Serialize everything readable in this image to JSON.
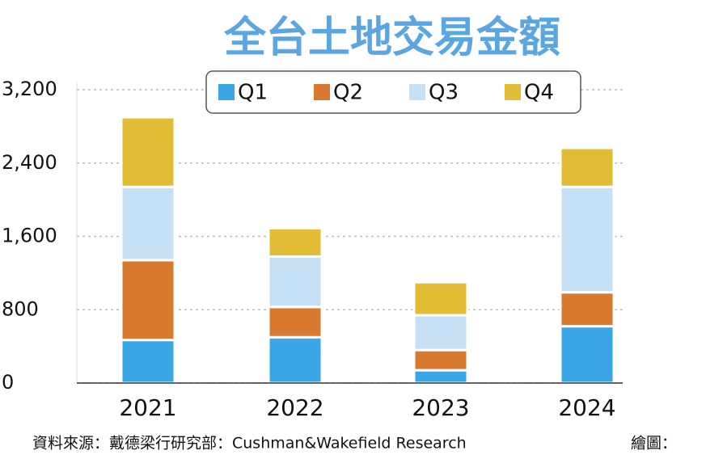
{
  "chart_data": {
    "type": "stacked_bar",
    "title": "全台土地交易金額",
    "categories": [
      "2021",
      "2022",
      "2023",
      "2024"
    ],
    "series": [
      {
        "name": "Q1",
        "color": "#3aa6e6",
        "values": [
          470,
          500,
          140,
          620
        ]
      },
      {
        "name": "Q2",
        "color": "#d9782f",
        "values": [
          870,
          330,
          220,
          370
        ]
      },
      {
        "name": "Q3",
        "color": "#c5e0f5",
        "values": [
          800,
          550,
          380,
          1150
        ]
      },
      {
        "name": "Q4",
        "color": "#e3bc35",
        "values": [
          760,
          310,
          360,
          425
        ]
      }
    ],
    "ylim": [
      0,
      3200
    ],
    "yticks": [
      0,
      800,
      {
        "value": 1600,
        "label": "1,600"
      },
      {
        "value": 2400,
        "label": "2,400"
      },
      {
        "value": 3200,
        "label": "3,200"
      }
    ],
    "grid": true,
    "source": "資料來源：戴德梁行研究部：Cushman&Wakefield Research",
    "credit": "繪圖："
  }
}
